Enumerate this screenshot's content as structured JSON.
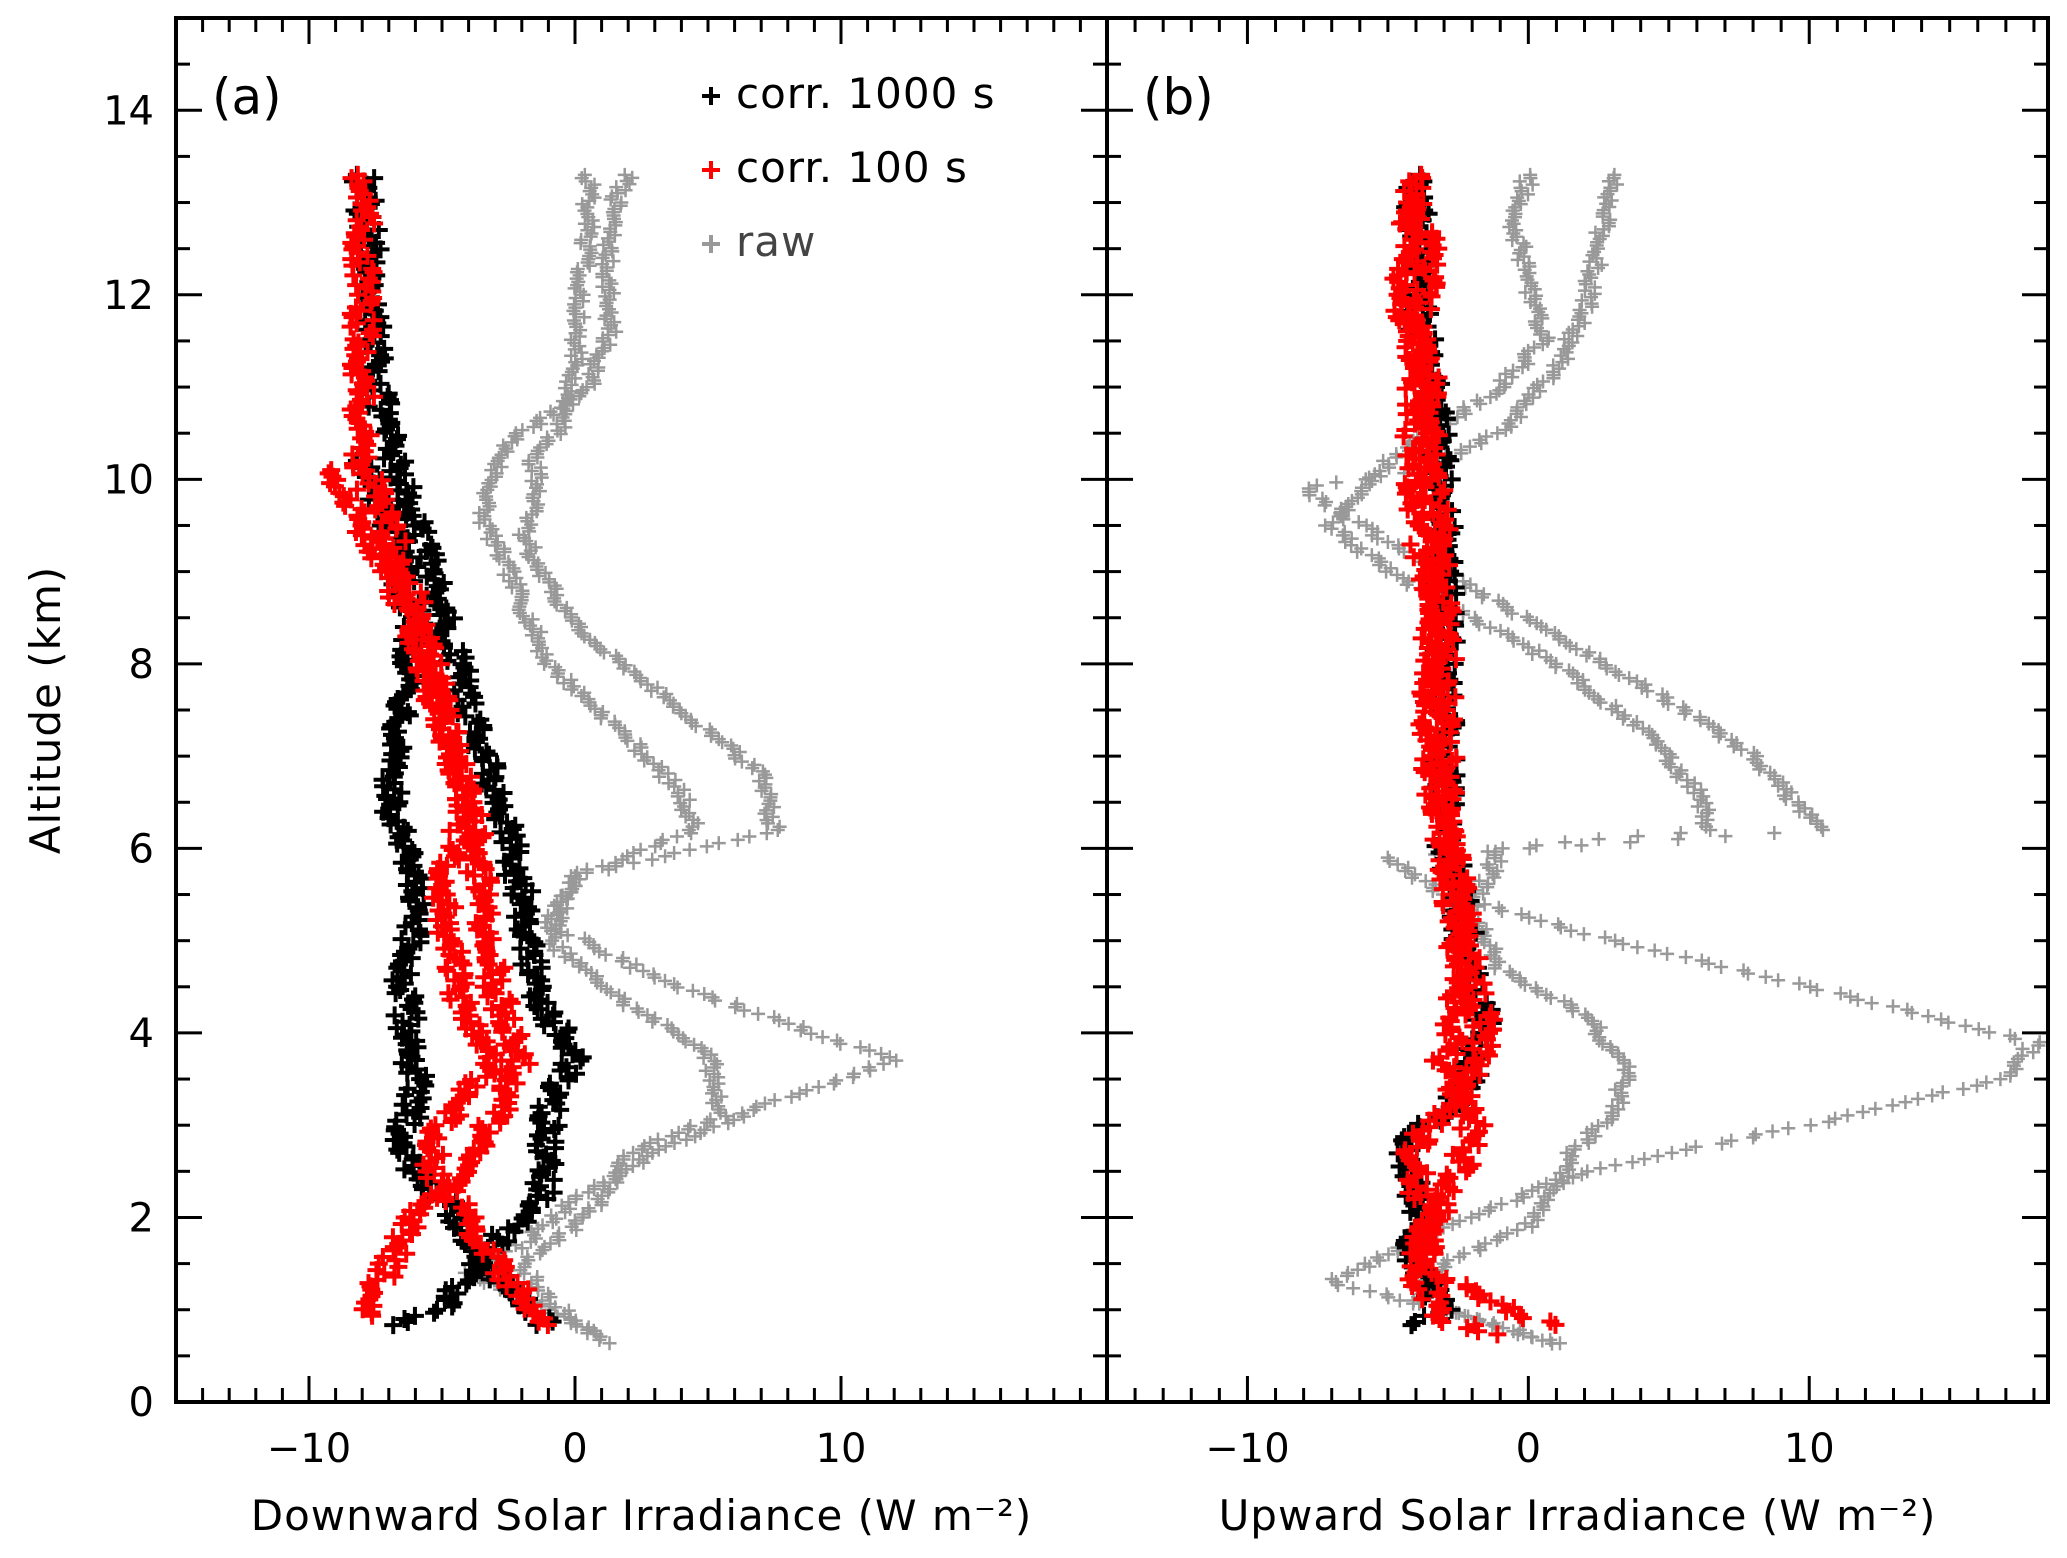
{
  "chart_data": [
    {
      "type": "scatter",
      "panel_label": "(a)",
      "xlabel": "Downward Solar Irradiance (W m⁻²)",
      "ylabel": "Altitude (km)",
      "xlim": [
        -15,
        20
      ],
      "ylim": [
        0,
        15
      ],
      "x_ticks": [
        "−10",
        "0",
        "10"
      ],
      "y_ticks": [
        "0",
        "2",
        "4",
        "6",
        "8",
        "10",
        "12",
        "14"
      ],
      "legend": {
        "placement": "top-right",
        "entries": [
          "corr. 1000 s",
          "corr. 100 s",
          "raw"
        ]
      },
      "marker": "plus",
      "series": [
        {
          "name": "raw",
          "color": "#999999",
          "traces": [
            [
              [
                2,
                13.3
              ],
              [
                1.5,
                13.0
              ],
              [
                1.2,
                12.4
              ],
              [
                1.3,
                11.6
              ],
              [
                0.5,
                11.0
              ],
              [
                -1,
                10.7
              ],
              [
                -2.5,
                10.4
              ],
              [
                -3,
                10.1
              ],
              [
                -3.5,
                9.6
              ],
              [
                -2.5,
                9.0
              ],
              [
                -1,
                8.0
              ],
              [
                2,
                7.2
              ],
              [
                4,
                6.6
              ],
              [
                4.5,
                6.2
              ],
              [
                0,
                5.7
              ],
              [
                -1,
                5.0
              ],
              [
                2,
                4.3
              ],
              [
                5,
                3.8
              ],
              [
                5.5,
                3.1
              ],
              [
                2,
                2.7
              ],
              [
                1,
                2.2
              ],
              [
                0,
                1.9
              ],
              [
                -2,
                1.5
              ],
              [
                -1,
                1.1
              ],
              [
                1,
                0.7
              ]
            ],
            [
              [
                0.5,
                13.3
              ],
              [
                0.5,
                12.7
              ],
              [
                0.2,
                12.0
              ],
              [
                0,
                11.2
              ],
              [
                -0.5,
                10.6
              ],
              [
                -1.5,
                10.2
              ],
              [
                -1.5,
                9.8
              ],
              [
                -2,
                9.4
              ],
              [
                0,
                8.4
              ],
              [
                4,
                7.5
              ],
              [
                7,
                6.8
              ],
              [
                7.5,
                6.2
              ],
              [
                0,
                5.7
              ],
              [
                -1,
                5.2
              ],
              [
                3,
                4.6
              ],
              [
                8,
                4.1
              ],
              [
                12,
                3.7
              ],
              [
                7,
                3.2
              ],
              [
                3,
                2.7
              ],
              [
                0,
                2.2
              ],
              [
                -2,
                1.7
              ],
              [
                -4,
                1.4
              ],
              [
                -1,
                1.0
              ],
              [
                1.5,
                0.6
              ]
            ]
          ]
        },
        {
          "name": "corr. 1000 s",
          "color": "#000000",
          "traces": [
            [
              [
                -8,
                13.3
              ],
              [
                -7.5,
                12.0
              ],
              [
                -7.5,
                11.0
              ],
              [
                -7,
                10.4
              ],
              [
                -6,
                9.5
              ],
              [
                -5,
                8.6
              ],
              [
                -4,
                7.5
              ],
              [
                -3,
                6.6
              ],
              [
                -2,
                5.5
              ],
              [
                -1.5,
                4.5
              ],
              [
                0,
                3.7
              ],
              [
                -1,
                3.2
              ],
              [
                -1.2,
                2.2
              ],
              [
                -3.5,
                1.6
              ],
              [
                -5,
                1.0
              ],
              [
                -7,
                0.8
              ]
            ],
            [
              [
                -8,
                10.2
              ],
              [
                -7,
                9.5
              ],
              [
                -6,
                8.4
              ],
              [
                -6.5,
                7.3
              ],
              [
                -7,
                6.5
              ],
              [
                -6,
                5.5
              ],
              [
                -6.5,
                4.5
              ],
              [
                -6,
                3.5
              ],
              [
                -6.5,
                2.7
              ],
              [
                -5,
                2.2
              ],
              [
                -3,
                1.4
              ],
              [
                -1,
                0.8
              ]
            ]
          ]
        },
        {
          "name": "corr. 100 s",
          "color": "#ff0000",
          "traces": [
            [
              [
                -8,
                13.3
              ],
              [
                -8,
                12.0
              ],
              [
                -8,
                11.0
              ],
              [
                -8,
                10.2
              ],
              [
                -7,
                9.5
              ],
              [
                -6,
                8.6
              ],
              [
                -5,
                7.5
              ],
              [
                -4,
                6.5
              ],
              [
                -3.5,
                5.5
              ],
              [
                -3,
                4.5
              ],
              [
                -2,
                3.7
              ],
              [
                -3,
                3.1
              ],
              [
                -4,
                2.6
              ],
              [
                -6,
                2.0
              ],
              [
                -7,
                1.5
              ],
              [
                -8,
                0.9
              ]
            ],
            [
              [
                -9,
                10.1
              ],
              [
                -8,
                9.5
              ],
              [
                -6,
                8.4
              ],
              [
                -5,
                7.4
              ],
              [
                -4,
                6.5
              ],
              [
                -5,
                5.5
              ],
              [
                -4.5,
                4.5
              ],
              [
                -3,
                3.7
              ],
              [
                -5,
                3.0
              ],
              [
                -5.5,
                2.5
              ],
              [
                -4,
                2.0
              ],
              [
                -3,
                1.5
              ],
              [
                -1,
                0.8
              ]
            ]
          ]
        }
      ]
    },
    {
      "type": "scatter",
      "panel_label": "(b)",
      "xlabel": "Upward Solar Irradiance (W m⁻²)",
      "ylabel": "",
      "xlim": [
        -15,
        18.5
      ],
      "ylim": [
        0,
        15
      ],
      "x_ticks": [
        "−10",
        "0",
        "10"
      ],
      "y_ticks": [],
      "marker": "plus",
      "series": [
        {
          "name": "raw",
          "color": "#999999",
          "traces": [
            [
              [
                3,
                13.3
              ],
              [
                2.5,
                12.5
              ],
              [
                2,
                11.8
              ],
              [
                1,
                11.2
              ],
              [
                -1,
                10.5
              ],
              [
                -4,
                10.1
              ],
              [
                -8,
                9.9
              ],
              [
                -6,
                9.5
              ],
              [
                -3,
                9.0
              ],
              [
                1,
                8.3
              ],
              [
                5,
                7.6
              ],
              [
                8,
                7.0
              ],
              [
                9.5,
                6.5
              ],
              [
                10.5,
                6.2
              ],
              [
                -5,
                5.9
              ],
              [
                -3,
                5.5
              ],
              [
                3,
                5.0
              ],
              [
                10,
                4.5
              ],
              [
                18,
                3.9
              ],
              [
                17,
                3.5
              ],
              [
                10,
                3.0
              ],
              [
                5,
                2.7
              ],
              [
                1,
                2.4
              ],
              [
                -2,
                2.0
              ],
              [
                -5,
                1.6
              ],
              [
                -7,
                1.3
              ],
              [
                -3,
                1.0
              ],
              [
                1.5,
                0.6
              ]
            ],
            [
              [
                0,
                13.3
              ],
              [
                -0.5,
                12.7
              ],
              [
                0,
                12.2
              ],
              [
                0.5,
                11.5
              ],
              [
                -1,
                11.0
              ],
              [
                -3,
                10.6
              ],
              [
                -5,
                10.2
              ],
              [
                -6,
                9.8
              ],
              [
                -7,
                9.5
              ],
              [
                -5,
                9.0
              ],
              [
                -2,
                8.5
              ],
              [
                1,
                8.0
              ],
              [
                4,
                7.3
              ],
              [
                6,
                6.6
              ],
              [
                6.5,
                6.2
              ],
              [
                -1,
                6.0
              ],
              [
                -2,
                5.3
              ],
              [
                -1,
                4.7
              ],
              [
                2,
                4.2
              ],
              [
                3.5,
                3.6
              ],
              [
                3,
                3.1
              ],
              [
                1.5,
                2.7
              ],
              [
                1,
                2.3
              ],
              [
                0,
                1.9
              ],
              [
                -3,
                1.5
              ],
              [
                -4,
                1.1
              ],
              [
                -1,
                0.8
              ],
              [
                1.5,
                0.6
              ]
            ]
          ]
        },
        {
          "name": "corr. 1000 s",
          "color": "#000000",
          "traces": [
            [
              [
                -4,
                13.3
              ],
              [
                -4,
                12.0
              ],
              [
                -3.5,
                11.0
              ],
              [
                -3,
                10.0
              ],
              [
                -3,
                9.0
              ],
              [
                -3,
                8.0
              ],
              [
                -3,
                7.0
              ],
              [
                -3,
                6.2
              ],
              [
                -2.5,
                5.5
              ],
              [
                -2,
                4.5
              ],
              [
                -1.5,
                4.0
              ],
              [
                -2.5,
                3.3
              ],
              [
                -4.5,
                2.8
              ],
              [
                -4,
                2.2
              ],
              [
                -4,
                1.5
              ],
              [
                -3,
                1.0
              ],
              [
                -4,
                0.8
              ]
            ]
          ]
        },
        {
          "name": "corr. 100 s",
          "color": "#ff0000",
          "traces": [
            [
              [
                -4,
                13.3
              ],
              [
                -4.5,
                12.0
              ],
              [
                -3.5,
                11.0
              ],
              [
                -3.5,
                10.2
              ],
              [
                -3,
                9.0
              ],
              [
                -3.5,
                8.0
              ],
              [
                -3.5,
                7.0
              ],
              [
                -3,
                6.2
              ],
              [
                -2.5,
                5.5
              ],
              [
                -2,
                4.5
              ],
              [
                -1.5,
                4.0
              ],
              [
                -2.5,
                3.3
              ],
              [
                -4,
                2.8
              ],
              [
                -4,
                2.3
              ],
              [
                -3,
                2.0
              ],
              [
                -4,
                1.5
              ],
              [
                -2,
                1.2
              ],
              [
                1,
                0.8
              ]
            ],
            [
              [
                -4.5,
                13.0
              ],
              [
                -3.5,
                12.5
              ],
              [
                -4,
                11.5
              ],
              [
                -4,
                10.5
              ],
              [
                -4,
                9.5
              ],
              [
                -3,
                8.5
              ],
              [
                -3,
                7.5
              ],
              [
                -3,
                6.5
              ],
              [
                -2.5,
                5.0
              ],
              [
                -2.5,
                4.2
              ],
              [
                -3,
                3.7
              ],
              [
                -2,
                3.0
              ],
              [
                -2.5,
                2.5
              ],
              [
                -3.5,
                2.0
              ],
              [
                -4,
                1.4
              ],
              [
                -3,
                0.9
              ],
              [
                -1,
                0.7
              ]
            ]
          ]
        }
      ]
    }
  ]
}
